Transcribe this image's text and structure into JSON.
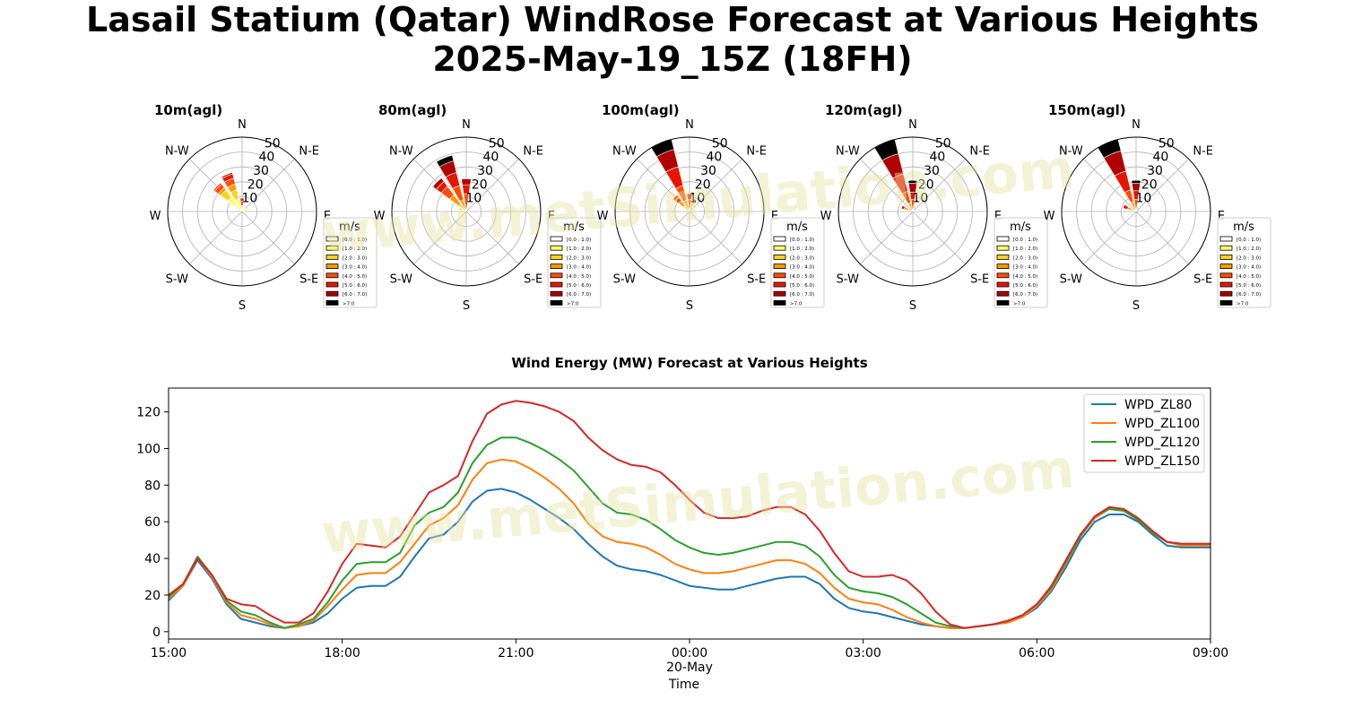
{
  "title": {
    "line1": "Lasail Statium (Qatar) WindRose Forecast at Various Heights",
    "line2": "2025-May-19_15Z (18FH)"
  },
  "watermark": "www.metSimulation.com",
  "colors": {
    "bins": [
      "#ffffff",
      "#ffff66",
      "#ffd21f",
      "#ff9a00",
      "#ff4d00",
      "#e81500",
      "#b00000",
      "#000000"
    ],
    "grid": "#b0b0b0",
    "watermark": "#e6e4a4"
  },
  "windrose": {
    "directions": [
      "N",
      "N-E",
      "E",
      "S-E",
      "S",
      "S-W",
      "W",
      "N-W"
    ],
    "radial_ticks": [
      "10",
      "20",
      "30",
      "40",
      "50"
    ],
    "radial_max": 50,
    "legend_title": "m/s",
    "legend_labels": [
      "[0.0 : 1.0)",
      "[1.0 : 2.0)",
      "[2.0 : 3.0)",
      "[3.0 : 4.0)",
      "[4.0 : 5.0)",
      "[5.0 : 6.0)",
      "[6.0 : 7.0)",
      ">7.0"
    ]
  },
  "chart_data": [
    {
      "type": "windrose",
      "title": "10m(agl)",
      "petals": [
        {
          "dir_deg": 315,
          "segments": [
            [
              1,
              12
            ],
            [
              2,
              6
            ],
            [
              3,
              2
            ],
            [
              4,
              3
            ],
            [
              5,
              1
            ]
          ]
        },
        {
          "dir_deg": 337.5,
          "segments": [
            [
              1,
              9
            ],
            [
              2,
              6
            ],
            [
              3,
              4
            ],
            [
              4,
              4
            ],
            [
              5,
              3
            ],
            [
              6,
              1
            ]
          ]
        },
        {
          "dir_deg": 360,
          "segments": [
            [
              2,
              4
            ],
            [
              4,
              3
            ],
            [
              5,
              2
            ]
          ]
        },
        {
          "dir_deg": 45,
          "segments": [
            [
              1,
              3
            ]
          ]
        },
        {
          "dir_deg": 67.5,
          "segments": [
            [
              1,
              5
            ]
          ]
        },
        {
          "dir_deg": 292.5,
          "segments": [
            [
              1,
              3
            ]
          ]
        }
      ]
    },
    {
      "type": "windrose",
      "title": "80m(agl)",
      "petals": [
        {
          "dir_deg": 337.5,
          "segments": [
            [
              3,
              8
            ],
            [
              4,
              10
            ],
            [
              5,
              9
            ],
            [
              6,
              8
            ],
            [
              7,
              4
            ]
          ]
        },
        {
          "dir_deg": 315,
          "segments": [
            [
              2,
              6
            ],
            [
              3,
              8
            ],
            [
              4,
              7
            ],
            [
              5,
              4
            ],
            [
              6,
              3
            ]
          ]
        },
        {
          "dir_deg": 360,
          "segments": [
            [
              4,
              12
            ],
            [
              5,
              6
            ],
            [
              6,
              4
            ]
          ]
        },
        {
          "dir_deg": 292.5,
          "segments": [
            [
              1,
              3
            ],
            [
              2,
              2
            ]
          ]
        },
        {
          "dir_deg": 22.5,
          "segments": [
            [
              1,
              3
            ]
          ]
        }
      ]
    },
    {
      "type": "windrose",
      "title": "100m(agl)",
      "petals": [
        {
          "dir_deg": 337.5,
          "segments": [
            [
              3,
              8
            ],
            [
              4,
              10
            ],
            [
              5,
              13
            ],
            [
              6,
              12
            ],
            [
              7,
              7
            ]
          ]
        },
        {
          "dir_deg": 315,
          "segments": [
            [
              2,
              5
            ],
            [
              3,
              4
            ],
            [
              4,
              3
            ],
            [
              5,
              2
            ]
          ]
        },
        {
          "dir_deg": 360,
          "segments": [
            [
              4,
              8
            ],
            [
              5,
              4
            ]
          ]
        },
        {
          "dir_deg": 22.5,
          "segments": [
            [
              2,
              6
            ],
            [
              4,
              3
            ]
          ]
        },
        {
          "dir_deg": 292.5,
          "segments": [
            [
              1,
              3
            ]
          ]
        }
      ]
    },
    {
      "type": "windrose",
      "title": "120m(agl)",
      "petals": [
        {
          "dir_deg": 337.5,
          "segments": [
            [
              3,
              6
            ],
            [
              4,
              8
            ],
            [
              5,
              12
            ],
            [
              6,
              14
            ],
            [
              7,
              10
            ]
          ]
        },
        {
          "dir_deg": 360,
          "segments": [
            [
              4,
              8
            ],
            [
              5,
              5
            ],
            [
              6,
              6
            ],
            [
              7,
              2
            ]
          ]
        },
        {
          "dir_deg": 292.5,
          "segments": [
            [
              2,
              3
            ],
            [
              3,
              3
            ],
            [
              5,
              2
            ]
          ]
        },
        {
          "dir_deg": 22.5,
          "segments": [
            [
              2,
              4
            ]
          ]
        },
        {
          "dir_deg": 67.5,
          "segments": [
            [
              1,
              3
            ]
          ]
        }
      ]
    },
    {
      "type": "windrose",
      "title": "150m(agl)",
      "petals": [
        {
          "dir_deg": 337.5,
          "segments": [
            [
              3,
              7
            ],
            [
              4,
              8
            ],
            [
              5,
              13
            ],
            [
              6,
              14
            ],
            [
              7,
              8
            ]
          ]
        },
        {
          "dir_deg": 360,
          "segments": [
            [
              4,
              8
            ],
            [
              5,
              6
            ],
            [
              6,
              5
            ],
            [
              7,
              2
            ]
          ]
        },
        {
          "dir_deg": 292.5,
          "segments": [
            [
              2,
              3
            ],
            [
              3,
              3
            ],
            [
              5,
              3
            ]
          ]
        },
        {
          "dir_deg": 22.5,
          "segments": [
            [
              2,
              3
            ]
          ]
        }
      ]
    },
    {
      "type": "line",
      "title": "Wind Energy (MW) Forecast at Various Heights",
      "xlabel": "Time",
      "ylabel": "",
      "xlim": [
        0,
        18
      ],
      "ylim": [
        -4,
        133
      ],
      "yticks": [
        0,
        20,
        40,
        60,
        80,
        100,
        120
      ],
      "xticks": [
        {
          "hour": 0,
          "label": "15:00"
        },
        {
          "hour": 3,
          "label": "18:00"
        },
        {
          "hour": 6,
          "label": "21:00"
        },
        {
          "hour": 9,
          "label": "00:00",
          "sublabel": "20-May"
        },
        {
          "hour": 12,
          "label": "03:00"
        },
        {
          "hour": 15,
          "label": "06:00"
        },
        {
          "hour": 18,
          "label": "09:00"
        }
      ],
      "legend_position": "top-right",
      "x_hours": [
        0,
        0.25,
        0.5,
        0.75,
        1,
        1.25,
        1.5,
        1.75,
        2,
        2.25,
        2.5,
        2.75,
        3,
        3.25,
        3.5,
        3.75,
        4,
        4.25,
        4.5,
        4.75,
        5,
        5.25,
        5.5,
        5.75,
        6,
        6.25,
        6.5,
        6.75,
        7,
        7.25,
        7.5,
        7.75,
        8,
        8.25,
        8.5,
        8.75,
        9,
        9.25,
        9.5,
        9.75,
        10,
        10.25,
        10.5,
        10.75,
        11,
        11.25,
        11.5,
        11.75,
        12,
        12.25,
        12.5,
        12.75,
        13,
        13.25,
        13.5,
        13.75,
        14,
        14.25,
        14.5,
        14.75,
        15,
        15.25,
        15.5,
        15.75,
        16,
        16.25,
        16.5,
        16.75,
        17,
        17.25,
        17.5,
        17.75,
        18
      ],
      "series": [
        {
          "name": "WPD_ZL80",
          "color": "#1f77b4",
          "values": [
            17,
            25,
            39,
            29,
            15,
            7,
            5,
            3,
            2,
            3,
            5,
            10,
            18,
            24,
            25,
            25,
            30,
            41,
            51,
            53,
            60,
            71,
            77,
            78,
            76,
            72,
            67,
            62,
            56,
            48,
            41,
            36,
            34,
            33,
            31,
            28,
            25,
            24,
            23,
            23,
            25,
            27,
            29,
            30,
            30,
            26,
            18,
            13,
            11,
            10,
            8,
            6,
            4,
            3,
            2,
            2,
            3,
            4,
            5,
            8,
            13,
            22,
            35,
            50,
            60,
            64,
            64,
            60,
            53,
            47,
            46,
            46,
            46
          ]
        },
        {
          "name": "WPD_ZL100",
          "color": "#ff7f0e",
          "values": [
            18,
            25,
            40,
            30,
            16,
            9,
            7,
            4,
            2,
            3,
            6,
            14,
            23,
            31,
            32,
            32,
            38,
            48,
            58,
            62,
            69,
            83,
            92,
            94,
            93,
            89,
            84,
            78,
            70,
            59,
            52,
            49,
            48,
            46,
            42,
            37,
            34,
            32,
            32,
            33,
            35,
            37,
            39,
            39,
            37,
            32,
            24,
            18,
            16,
            15,
            12,
            8,
            5,
            3,
            2,
            2,
            3,
            4,
            5,
            8,
            14,
            23,
            37,
            52,
            62,
            67,
            66,
            61,
            54,
            49,
            47,
            47,
            47
          ]
        },
        {
          "name": "WPD_ZL120",
          "color": "#2ca02c",
          "values": [
            19,
            26,
            41,
            31,
            17,
            11,
            9,
            5,
            2,
            4,
            7,
            16,
            28,
            37,
            38,
            38,
            43,
            58,
            65,
            68,
            76,
            92,
            102,
            106,
            106,
            103,
            99,
            94,
            88,
            79,
            70,
            65,
            64,
            61,
            56,
            50,
            46,
            43,
            42,
            43,
            45,
            47,
            49,
            49,
            47,
            41,
            31,
            24,
            22,
            21,
            19,
            15,
            10,
            5,
            3,
            2,
            3,
            4,
            6,
            9,
            15,
            24,
            38,
            52,
            63,
            67,
            66,
            61,
            54,
            49,
            48,
            48,
            48
          ]
        },
        {
          "name": "WPD_ZL150",
          "color": "#d62728",
          "values": [
            20,
            26,
            40,
            31,
            18,
            15,
            14,
            9,
            5,
            5,
            10,
            22,
            37,
            48,
            47,
            46,
            52,
            64,
            76,
            80,
            85,
            104,
            119,
            124,
            126,
            125,
            123,
            120,
            115,
            106,
            99,
            94,
            91,
            90,
            87,
            80,
            72,
            65,
            62,
            62,
            63,
            66,
            68,
            68,
            64,
            55,
            43,
            33,
            30,
            30,
            31,
            28,
            21,
            11,
            4,
            2,
            3,
            4,
            6,
            9,
            15,
            25,
            39,
            53,
            63,
            68,
            67,
            62,
            55,
            49,
            48,
            48,
            48
          ]
        }
      ]
    }
  ]
}
